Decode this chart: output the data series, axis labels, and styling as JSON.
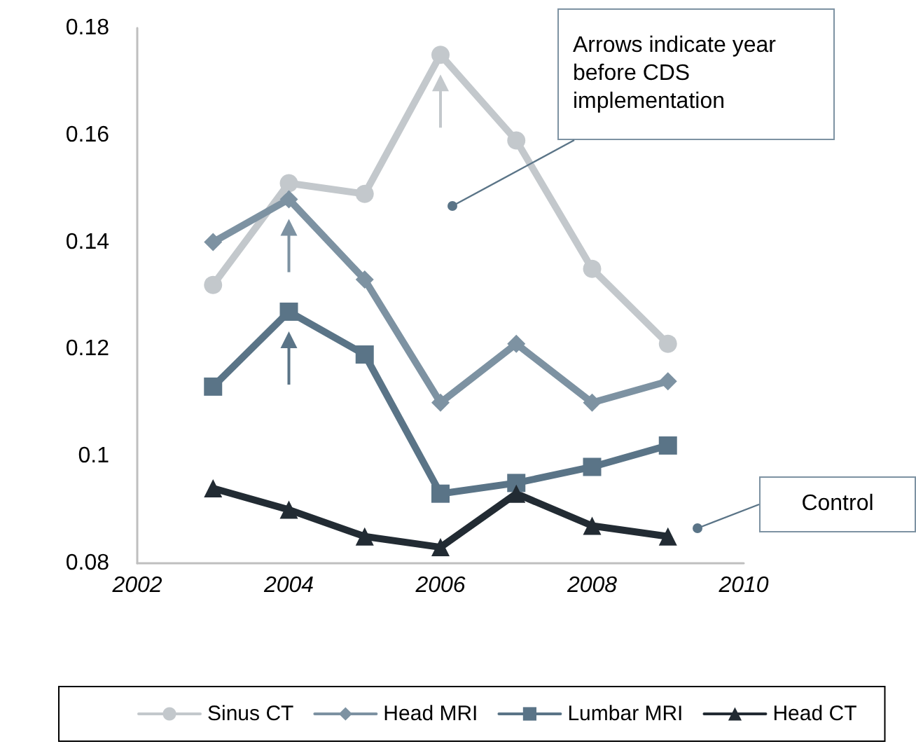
{
  "chart_data": {
    "type": "line",
    "x": [
      2003,
      2004,
      2005,
      2006,
      2007,
      2008,
      2009
    ],
    "series": [
      {
        "name": "Sinus CT",
        "color": "#c3c8cc",
        "marker": "circle",
        "values": [
          0.132,
          0.151,
          0.149,
          0.175,
          0.159,
          0.135,
          0.121
        ]
      },
      {
        "name": "Head MRI",
        "color": "#7d92a2",
        "marker": "diamond",
        "values": [
          0.14,
          0.148,
          0.133,
          0.11,
          0.121,
          0.11,
          0.114
        ]
      },
      {
        "name": "Lumbar MRI",
        "color": "#5a7487",
        "marker": "square",
        "values": [
          0.113,
          0.127,
          0.119,
          0.093,
          0.095,
          0.098,
          0.102
        ]
      },
      {
        "name": "Head CT",
        "color": "#222b33",
        "marker": "triangle",
        "values": [
          0.094,
          0.09,
          0.085,
          0.083,
          0.093,
          0.087,
          0.085
        ]
      }
    ],
    "xlim": [
      2002,
      2010
    ],
    "xticks": [
      2002,
      2004,
      2006,
      2008,
      2010
    ],
    "ylim": [
      0.08,
      0.18
    ],
    "yticks": [
      0.08,
      0.1,
      0.12,
      0.14,
      0.16,
      0.18
    ],
    "grid": false,
    "legend": "bottom",
    "annotations": [
      "Arrows indicate year before CDS implementation",
      "Control"
    ]
  }
}
